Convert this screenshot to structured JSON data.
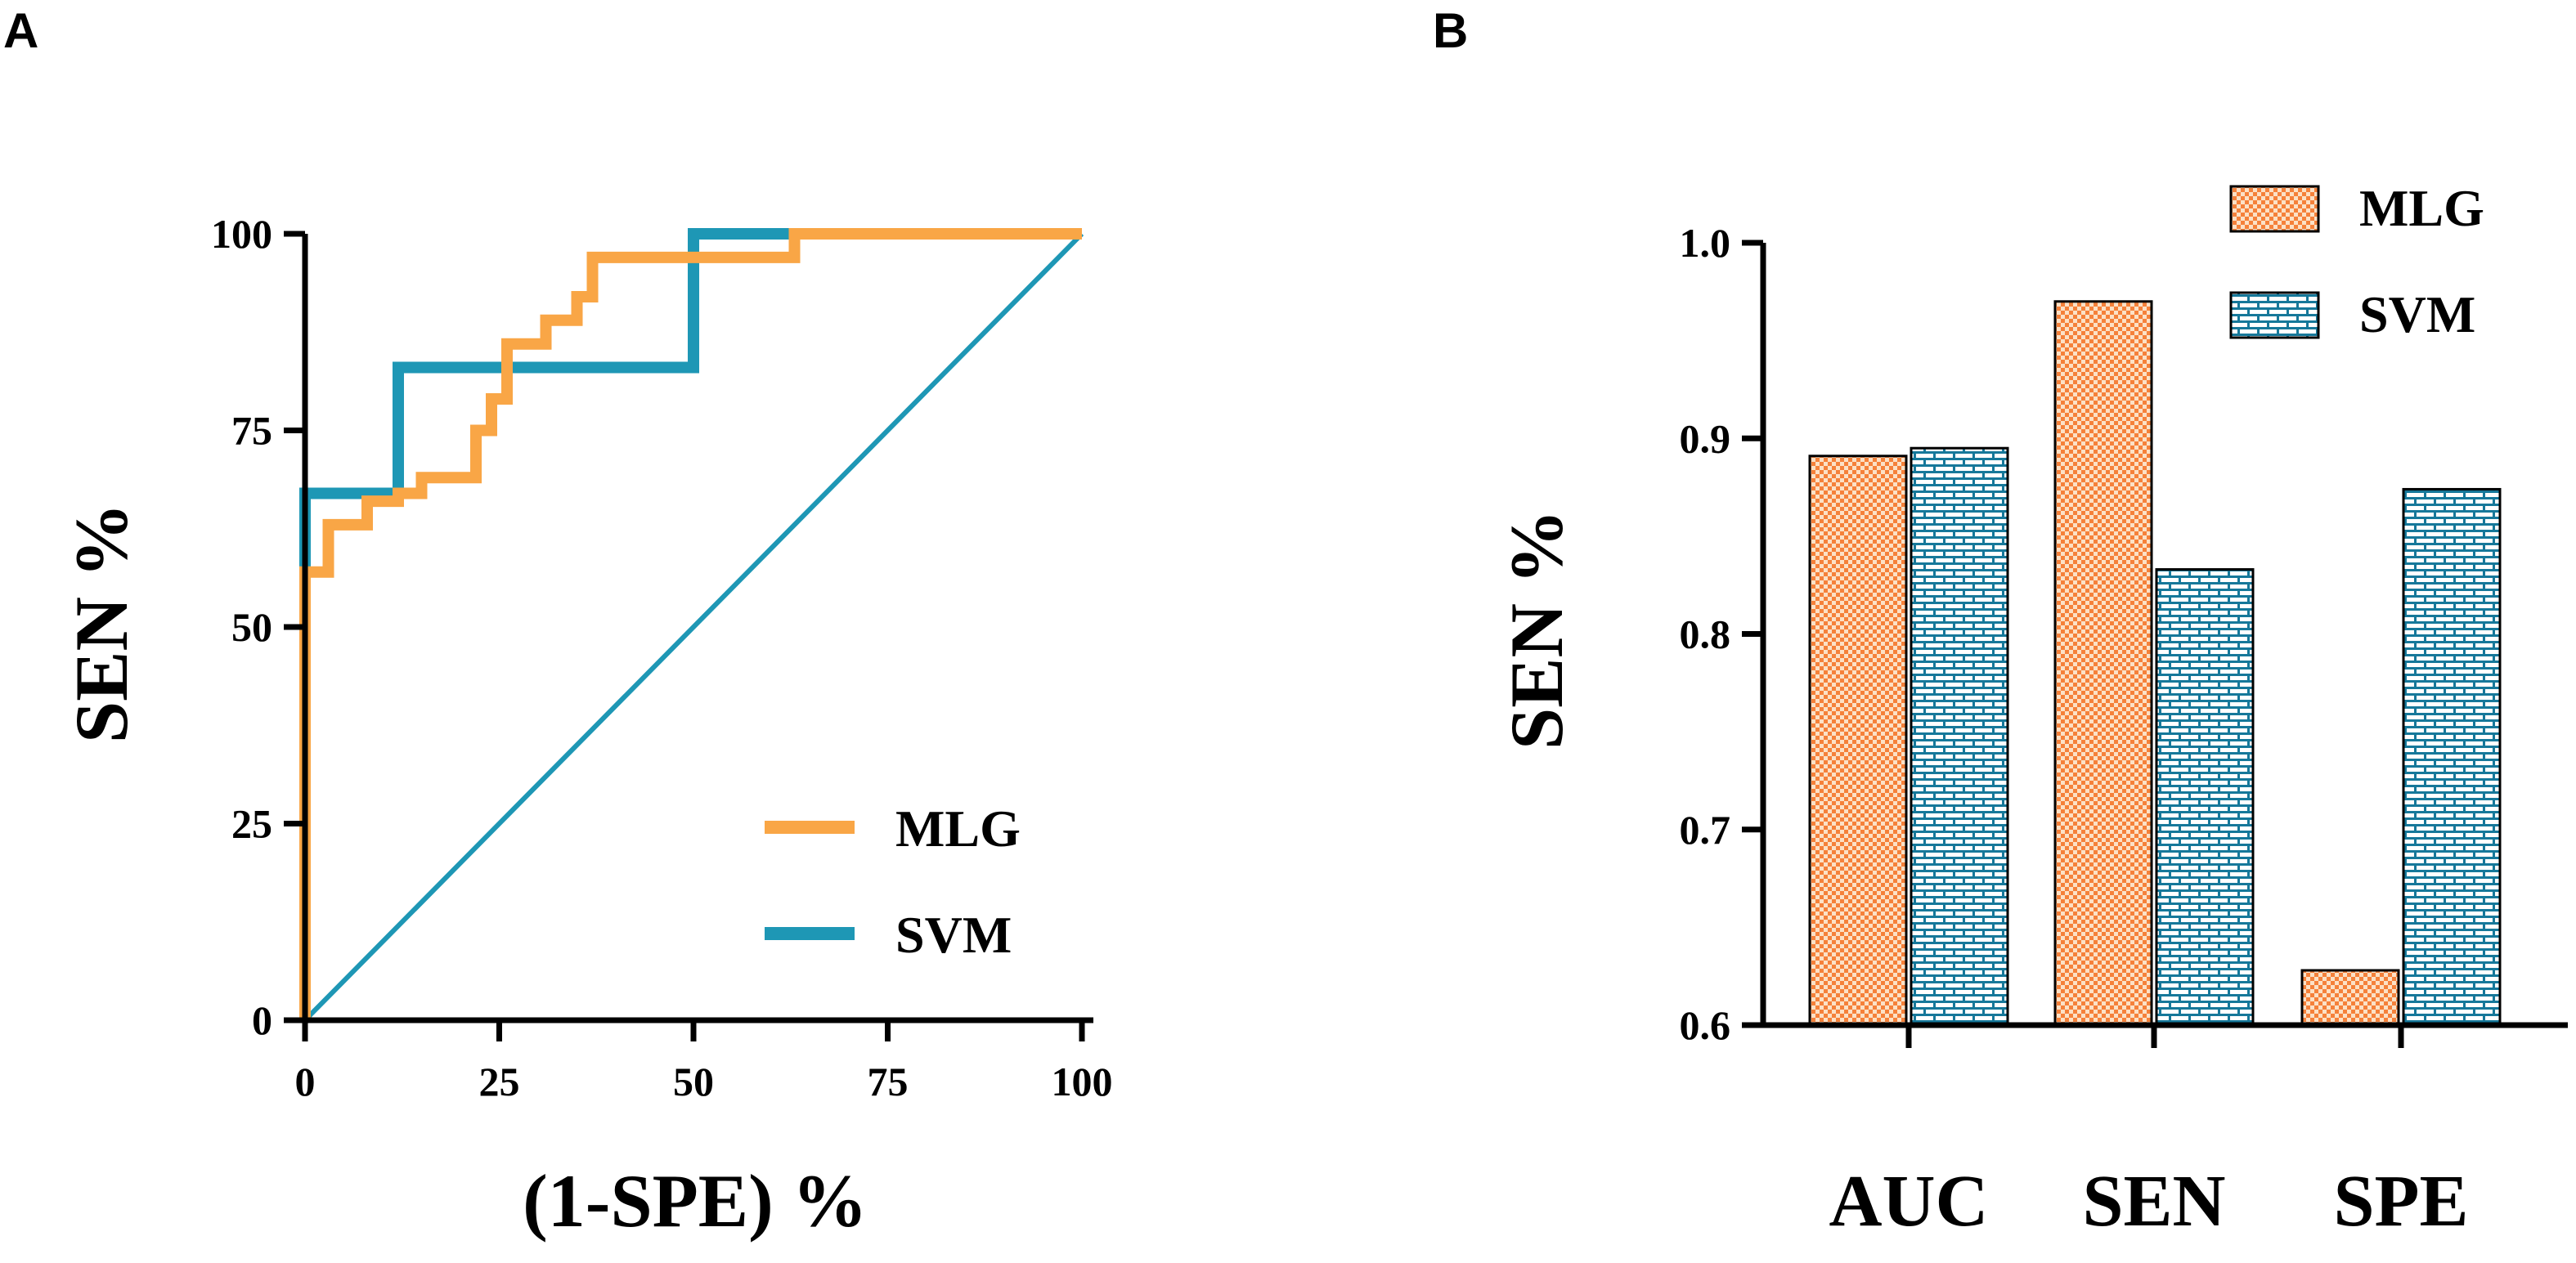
{
  "panels": {
    "a_label": "A",
    "b_label": "B"
  },
  "colors": {
    "mlg": "#F9A646",
    "svm": "#1E97B5",
    "mlg_bar": "#F5813A",
    "svm_bar": "#16789A"
  },
  "chart_data": [
    {
      "type": "line",
      "title": "",
      "xlabel": "(1-SPE) %",
      "ylabel": "SEN %",
      "xlim": [
        0,
        100
      ],
      "ylim": [
        0,
        100
      ],
      "xticks": [
        "0",
        "25",
        "50",
        "75",
        "100"
      ],
      "yticks": [
        "0",
        "25",
        "50",
        "75",
        "100"
      ],
      "legend_position": "bottom-right",
      "series": [
        {
          "name": "MLG",
          "points": [
            [
              0,
              0
            ],
            [
              0,
              57
            ],
            [
              3,
              57
            ],
            [
              3,
              63
            ],
            [
              8,
              63
            ],
            [
              8,
              66
            ],
            [
              12,
              66
            ],
            [
              12,
              67
            ],
            [
              15,
              67
            ],
            [
              15,
              69
            ],
            [
              22,
              69
            ],
            [
              22,
              75
            ],
            [
              24,
              75
            ],
            [
              24,
              79
            ],
            [
              26,
              79
            ],
            [
              26,
              86
            ],
            [
              31,
              86
            ],
            [
              31,
              89
            ],
            [
              35,
              89
            ],
            [
              35,
              92
            ],
            [
              37,
              92
            ],
            [
              37,
              97
            ],
            [
              63,
              97
            ],
            [
              63,
              100
            ],
            [
              100,
              100
            ]
          ]
        },
        {
          "name": "SVM",
          "points": [
            [
              0,
              0
            ],
            [
              0,
              58
            ],
            [
              0,
              67
            ],
            [
              12,
              67
            ],
            [
              12,
              83
            ],
            [
              50,
              83
            ],
            [
              50,
              100
            ],
            [
              100,
              100
            ]
          ]
        },
        {
          "name": "reference",
          "points": [
            [
              0,
              0
            ],
            [
              100,
              100
            ]
          ]
        }
      ]
    },
    {
      "type": "bar",
      "title": "",
      "xlabel": "",
      "ylabel": "SEN %",
      "ylim": [
        0.6,
        1.0
      ],
      "yticks": [
        "0.6",
        "0.7",
        "0.8",
        "0.9",
        "1.0"
      ],
      "categories": [
        "AUC",
        "SEN",
        "SPE"
      ],
      "legend_position": "top-right",
      "series": [
        {
          "name": "MLG",
          "values": [
            0.891,
            0.97,
            0.628
          ]
        },
        {
          "name": "SVM",
          "values": [
            0.895,
            0.833,
            0.874
          ]
        }
      ]
    }
  ]
}
